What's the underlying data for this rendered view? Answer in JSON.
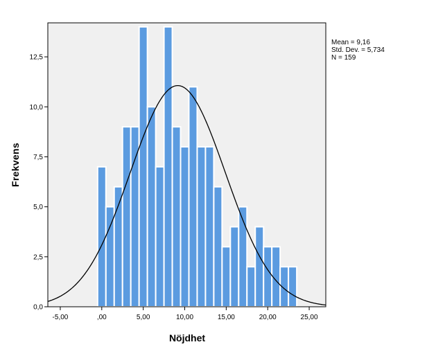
{
  "chart_data": {
    "type": "bar",
    "xlabel": "Nöjdhet",
    "ylabel": "Frekvens",
    "xlim": [
      -6.5,
      27.0
    ],
    "ylim": [
      0,
      14.2
    ],
    "x_ticks": [
      -5,
      0,
      5,
      10,
      15,
      20,
      25
    ],
    "x_tick_labels": [
      "-5,00",
      ",00",
      "5,00",
      "10,00",
      "15,00",
      "20,00",
      "25,00"
    ],
    "y_ticks": [
      0,
      2.5,
      5,
      7.5,
      10,
      12.5
    ],
    "y_tick_labels": [
      "0,0",
      "2,5",
      "5,0",
      "7,5",
      "10,0",
      "12,5"
    ],
    "bin_width": 1,
    "bin_centers": [
      0,
      1,
      2,
      3,
      4,
      5,
      6,
      7,
      8,
      9,
      10,
      11,
      12,
      13,
      14,
      15,
      16,
      17,
      18,
      19,
      20,
      21,
      22,
      23
    ],
    "values": [
      7,
      5,
      6,
      9,
      9,
      14,
      10,
      7,
      14,
      9,
      8,
      11,
      8,
      8,
      6,
      3,
      4,
      5,
      2,
      4,
      3,
      3,
      2,
      2
    ],
    "bar_color": "#5b9be0",
    "bar_edge_color": "#ffffff",
    "plot_background": "#f0f0f0",
    "normal_curve": {
      "mean": 9.16,
      "sd": 5.734,
      "n": 159,
      "color": "#000000"
    },
    "grid": false
  },
  "stats": {
    "mean": "Mean = 9,16",
    "std_dev": "Std. Dev. = 5,734",
    "n": "N = 159"
  }
}
